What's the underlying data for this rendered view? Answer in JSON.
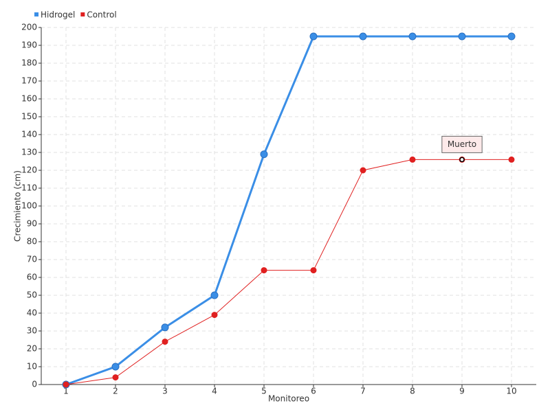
{
  "chart_data": {
    "type": "line",
    "x_label": "Monitoreo",
    "y_label": "Crecimiento (cm)",
    "x": [
      1,
      2,
      3,
      4,
      5,
      6,
      7,
      8,
      9,
      10
    ],
    "xlim": [
      0.5,
      10.5
    ],
    "xticks": [
      1,
      2,
      3,
      4,
      5,
      6,
      7,
      8,
      9,
      10
    ],
    "ylim": [
      0,
      200
    ],
    "yticks": [
      0,
      10,
      20,
      30,
      40,
      50,
      60,
      70,
      80,
      90,
      100,
      110,
      120,
      130,
      140,
      150,
      160,
      170,
      180,
      190,
      200
    ],
    "grid": true,
    "legend": "top-left",
    "series": [
      {
        "name": "Hidrogel",
        "color": "#3a8ee6",
        "values": [
          0,
          10,
          32,
          50,
          129,
          195,
          195,
          195,
          195,
          195
        ]
      },
      {
        "name": "Control",
        "color": "#e02020",
        "values": [
          0,
          4,
          24,
          39,
          64,
          64,
          120,
          126,
          126,
          126
        ]
      }
    ],
    "annotations": [
      {
        "text": "Muerto",
        "x": 9,
        "y": 126
      }
    ]
  }
}
